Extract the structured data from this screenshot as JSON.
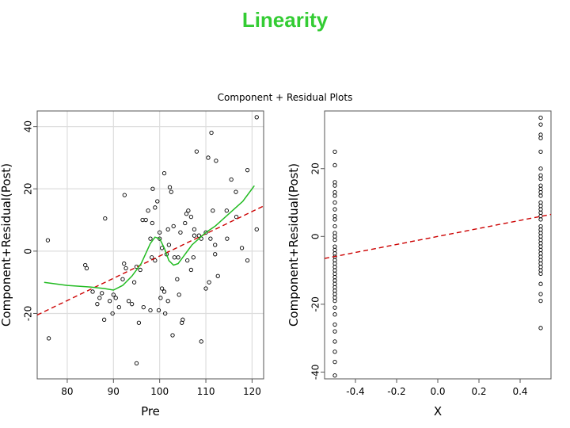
{
  "page": {
    "title": "Linearity"
  },
  "figure": {
    "main_title": "Component + Residual Plots"
  },
  "chart_data": [
    {
      "type": "scatter",
      "title": "",
      "xlabel": "Pre",
      "ylabel": "Component+Residual(Post)",
      "xlim": [
        73.5,
        122.5
      ],
      "ylim": [
        -41,
        45
      ],
      "xticks": [
        80,
        90,
        100,
        110,
        120
      ],
      "yticks": [
        -20,
        0,
        20,
        40
      ],
      "grid": true,
      "points": [
        [
          75.8,
          3.5
        ],
        [
          76,
          -28
        ],
        [
          83.9,
          -4.5
        ],
        [
          84.2,
          -5.5
        ],
        [
          85.5,
          -13
        ],
        [
          86.5,
          -17
        ],
        [
          87,
          -15
        ],
        [
          87.5,
          -13.5
        ],
        [
          88,
          -22
        ],
        [
          88.2,
          10.5
        ],
        [
          89.2,
          -16
        ],
        [
          89.8,
          -20
        ],
        [
          90,
          -14
        ],
        [
          90.5,
          -15
        ],
        [
          91.2,
          -18
        ],
        [
          92,
          -9
        ],
        [
          92.3,
          -4
        ],
        [
          92.4,
          18
        ],
        [
          92.7,
          -5.5
        ],
        [
          93.3,
          -16
        ],
        [
          94,
          -17
        ],
        [
          94.5,
          -10
        ],
        [
          95,
          -5
        ],
        [
          95,
          -36
        ],
        [
          95.5,
          -23
        ],
        [
          95.8,
          -6
        ],
        [
          96.3,
          10
        ],
        [
          96.5,
          -18
        ],
        [
          97,
          10
        ],
        [
          97.5,
          13
        ],
        [
          98,
          -19
        ],
        [
          98,
          4
        ],
        [
          98.3,
          -2
        ],
        [
          98.4,
          9
        ],
        [
          98.5,
          20
        ],
        [
          99,
          14
        ],
        [
          99,
          -3
        ],
        [
          99.5,
          16
        ],
        [
          99.8,
          -19
        ],
        [
          100,
          4
        ],
        [
          100,
          6
        ],
        [
          100.2,
          -15
        ],
        [
          100.5,
          -12
        ],
        [
          100.5,
          1
        ],
        [
          101,
          -13
        ],
        [
          101,
          25
        ],
        [
          101.2,
          -20
        ],
        [
          101.5,
          -1
        ],
        [
          101.8,
          7
        ],
        [
          101.8,
          -16
        ],
        [
          102,
          2
        ],
        [
          102.2,
          20.5
        ],
        [
          102.5,
          19
        ],
        [
          102.8,
          -27
        ],
        [
          103,
          8
        ],
        [
          103.2,
          -2
        ],
        [
          103.8,
          -9
        ],
        [
          104,
          -2
        ],
        [
          104.2,
          -14
        ],
        [
          104.5,
          6
        ],
        [
          104.8,
          -23
        ],
        [
          105,
          -22
        ],
        [
          105.5,
          9
        ],
        [
          105.8,
          12
        ],
        [
          106,
          -3
        ],
        [
          106.2,
          13
        ],
        [
          106.8,
          11
        ],
        [
          106.8,
          -6
        ],
        [
          107.3,
          -2
        ],
        [
          107.5,
          5
        ],
        [
          107.5,
          7
        ],
        [
          108,
          32
        ],
        [
          108.5,
          5
        ],
        [
          109,
          -29
        ],
        [
          109,
          4
        ],
        [
          110,
          6
        ],
        [
          110,
          -12
        ],
        [
          110.5,
          30
        ],
        [
          110.7,
          -10
        ],
        [
          111,
          4
        ],
        [
          111.2,
          38
        ],
        [
          111.5,
          13
        ],
        [
          112,
          2
        ],
        [
          112,
          -1
        ],
        [
          112.2,
          29
        ],
        [
          112.6,
          -8
        ],
        [
          114.5,
          13
        ],
        [
          114.6,
          4
        ],
        [
          115.5,
          23
        ],
        [
          116.5,
          19
        ],
        [
          116.6,
          11
        ],
        [
          117.8,
          1
        ],
        [
          119,
          -3
        ],
        [
          119,
          26
        ],
        [
          121,
          43
        ],
        [
          121,
          7
        ]
      ],
      "fit_line": {
        "x": [
          73.5,
          122.5
        ],
        "y": [
          -20.5,
          14.5
        ]
      },
      "smooth_line": {
        "x": [
          75,
          80,
          85,
          88,
          90,
          92,
          94,
          96,
          98,
          99,
          100,
          101,
          102,
          103,
          104,
          105,
          107,
          110,
          112,
          115,
          118,
          120.5
        ],
        "y": [
          -10,
          -11,
          -11.5,
          -12,
          -12.5,
          -11,
          -8,
          -4,
          2.5,
          4.5,
          4,
          1,
          -3,
          -4.5,
          -4,
          -2,
          2,
          6,
          8,
          12,
          16,
          21
        ]
      }
    },
    {
      "type": "scatter",
      "title": "",
      "xlabel": "X",
      "ylabel": "Component+Residual(Post)",
      "xlim": [
        -0.55,
        0.55
      ],
      "ylim": [
        -42,
        37
      ],
      "xticks": [
        -0.4,
        -0.2,
        0.0,
        0.2,
        0.4
      ],
      "yticks": [
        -40,
        -20,
        0,
        20
      ],
      "grid": false,
      "points": [
        [
          -0.5,
          25
        ],
        [
          -0.5,
          21
        ],
        [
          -0.5,
          16
        ],
        [
          -0.5,
          15
        ],
        [
          -0.5,
          13
        ],
        [
          -0.5,
          12
        ],
        [
          -0.5,
          10
        ],
        [
          -0.5,
          8
        ],
        [
          -0.5,
          6
        ],
        [
          -0.5,
          5
        ],
        [
          -0.5,
          3
        ],
        [
          -0.5,
          1
        ],
        [
          -0.5,
          0
        ],
        [
          -0.5,
          -1
        ],
        [
          -0.5,
          -3
        ],
        [
          -0.5,
          -4
        ],
        [
          -0.5,
          -5
        ],
        [
          -0.5,
          -6
        ],
        [
          -0.5,
          -7
        ],
        [
          -0.5,
          -8
        ],
        [
          -0.5,
          -9
        ],
        [
          -0.5,
          -10
        ],
        [
          -0.5,
          -11
        ],
        [
          -0.5,
          -12
        ],
        [
          -0.5,
          -13
        ],
        [
          -0.5,
          -14
        ],
        [
          -0.5,
          -15
        ],
        [
          -0.5,
          -16
        ],
        [
          -0.5,
          -17
        ],
        [
          -0.5,
          -18
        ],
        [
          -0.5,
          -19
        ],
        [
          -0.5,
          -21
        ],
        [
          -0.5,
          -23
        ],
        [
          -0.5,
          -26
        ],
        [
          -0.5,
          -28
        ],
        [
          -0.5,
          -31
        ],
        [
          -0.5,
          -34
        ],
        [
          -0.5,
          -37
        ],
        [
          -0.5,
          -41
        ],
        [
          0.5,
          35
        ],
        [
          0.5,
          33
        ],
        [
          0.5,
          30
        ],
        [
          0.5,
          29
        ],
        [
          0.5,
          25
        ],
        [
          0.5,
          20
        ],
        [
          0.5,
          18
        ],
        [
          0.5,
          17
        ],
        [
          0.5,
          15
        ],
        [
          0.5,
          14
        ],
        [
          0.5,
          13
        ],
        [
          0.5,
          12
        ],
        [
          0.5,
          10
        ],
        [
          0.5,
          9
        ],
        [
          0.5,
          8
        ],
        [
          0.5,
          7
        ],
        [
          0.5,
          6
        ],
        [
          0.5,
          5
        ],
        [
          0.5,
          3
        ],
        [
          0.5,
          2
        ],
        [
          0.5,
          1
        ],
        [
          0.5,
          0
        ],
        [
          0.5,
          -1
        ],
        [
          0.5,
          -2
        ],
        [
          0.5,
          -3
        ],
        [
          0.5,
          -4
        ],
        [
          0.5,
          -5
        ],
        [
          0.5,
          -6
        ],
        [
          0.5,
          -7
        ],
        [
          0.5,
          -8
        ],
        [
          0.5,
          -9
        ],
        [
          0.5,
          -10
        ],
        [
          0.5,
          -11
        ],
        [
          0.5,
          -14
        ],
        [
          0.5,
          -17
        ],
        [
          0.5,
          -19
        ],
        [
          0.5,
          -27
        ]
      ],
      "fit_line": {
        "x": [
          -0.55,
          0.55
        ],
        "y": [
          -6.5,
          6.5
        ]
      }
    }
  ],
  "colors": {
    "title": "#33cc33",
    "smooth": "#22bb22",
    "fit": "#cc0000",
    "grid": "#dddddd",
    "axis": "#555555"
  }
}
